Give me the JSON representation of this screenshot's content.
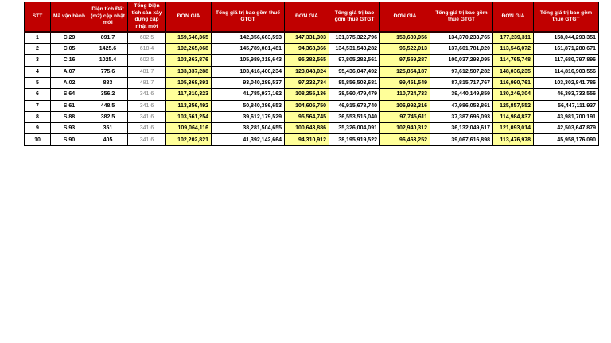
{
  "colors": {
    "header_bg": "#C00000",
    "header_text": "#FFFFFF",
    "highlight_bg": "#FFFF99",
    "muted_text": "#7F7F7F",
    "border": "#000000"
  },
  "table": {
    "columns": [
      {
        "key": "stt",
        "label": "STT",
        "align": "center",
        "highlight": false,
        "muted": false
      },
      {
        "key": "ma-van-hanh",
        "label": "Mã vận hành",
        "align": "center",
        "highlight": false,
        "muted": false
      },
      {
        "key": "dien-tich-dat",
        "label": "Diện tích Đất (m2) cập nhật mới",
        "align": "center",
        "highlight": false,
        "muted": false
      },
      {
        "key": "tong-dien-tich-san",
        "label": "Tổng Diện tích sàn xây dựng cập nhật mới",
        "align": "center",
        "highlight": false,
        "muted": true
      },
      {
        "key": "don-gia-1",
        "label": "ĐƠN GIÁ",
        "align": "right",
        "highlight": true,
        "muted": false
      },
      {
        "key": "tong-gia-tri-1",
        "label": "Tổng giá trị bao gồm thuế GTGT",
        "align": "right",
        "highlight": false,
        "muted": false
      },
      {
        "key": "don-gia-2",
        "label": "ĐƠN GIÁ",
        "align": "right",
        "highlight": true,
        "muted": false
      },
      {
        "key": "tong-gia-tri-2",
        "label": "Tổng giá trị bao gồm thuế GTGT",
        "align": "right",
        "highlight": false,
        "muted": false
      },
      {
        "key": "don-gia-3",
        "label": "ĐƠN GIÁ",
        "align": "right",
        "highlight": true,
        "muted": false
      },
      {
        "key": "tong-gia-tri-3",
        "label": "Tổng giá trị bao gồm thuế GTGT",
        "align": "right",
        "highlight": false,
        "muted": false
      },
      {
        "key": "don-gia-4",
        "label": "ĐƠN GIÁ",
        "align": "right",
        "highlight": true,
        "muted": false
      },
      {
        "key": "tong-gia-tri-4",
        "label": "Tổng giá trị bao gồm thuế GTGT",
        "align": "right",
        "highlight": false,
        "muted": false
      }
    ],
    "rows": [
      [
        "1",
        "C.29",
        "891.7",
        "602.5",
        "159,646,365",
        "142,356,663,593",
        "147,331,303",
        "131,375,322,796",
        "150,689,956",
        "134,370,233,765",
        "177,239,311",
        "158,044,293,351"
      ],
      [
        "2",
        "C.05",
        "1425.6",
        "618.4",
        "102,265,068",
        "145,789,081,481",
        "94,368,366",
        "134,531,543,282",
        "96,522,013",
        "137,601,781,020",
        "113,546,072",
        "161,871,280,671"
      ],
      [
        "3",
        "C.16",
        "1025.4",
        "602.5",
        "103,363,876",
        "105,989,318,643",
        "95,382,565",
        "97,805,282,561",
        "97,559,287",
        "100,037,293,095",
        "114,765,748",
        "117,680,797,896"
      ],
      [
        "4",
        "A.07",
        "775.6",
        "481.7",
        "133,337,288",
        "103,416,400,234",
        "123,048,024",
        "95,436,047,492",
        "125,854,187",
        "97,612,507,282",
        "148,036,235",
        "114,816,903,556"
      ],
      [
        "5",
        "A.02",
        "883",
        "481.7",
        "105,368,391",
        "93,040,289,537",
        "97,232,734",
        "85,856,503,681",
        "99,451,549",
        "87,815,717,767",
        "116,990,761",
        "103,302,841,786"
      ],
      [
        "6",
        "S.64",
        "356.2",
        "341.6",
        "117,310,323",
        "41,785,937,162",
        "108,255,136",
        "38,560,479,479",
        "110,724,733",
        "39,440,149,859",
        "130,246,304",
        "46,393,733,556"
      ],
      [
        "7",
        "S.61",
        "448.5",
        "341.6",
        "113,356,492",
        "50,840,386,653",
        "104,605,750",
        "46,915,678,740",
        "106,992,316",
        "47,986,053,861",
        "125,857,552",
        "56,447,111,937"
      ],
      [
        "8",
        "S.88",
        "382.5",
        "341.6",
        "103,561,254",
        "39,612,179,529",
        "95,564,745",
        "36,553,515,040",
        "97,745,611",
        "37,387,696,093",
        "114,984,837",
        "43,981,700,191"
      ],
      [
        "9",
        "S.93",
        "351",
        "341.6",
        "109,064,116",
        "38,281,504,655",
        "100,643,886",
        "35,326,004,091",
        "102,940,312",
        "36,132,049,617",
        "121,093,014",
        "42,503,647,879"
      ],
      [
        "10",
        "S.90",
        "405",
        "341.6",
        "102,202,821",
        "41,392,142,664",
        "94,310,912",
        "38,195,919,522",
        "96,463,252",
        "39,067,616,898",
        "113,476,978",
        "45,958,176,090"
      ]
    ]
  }
}
